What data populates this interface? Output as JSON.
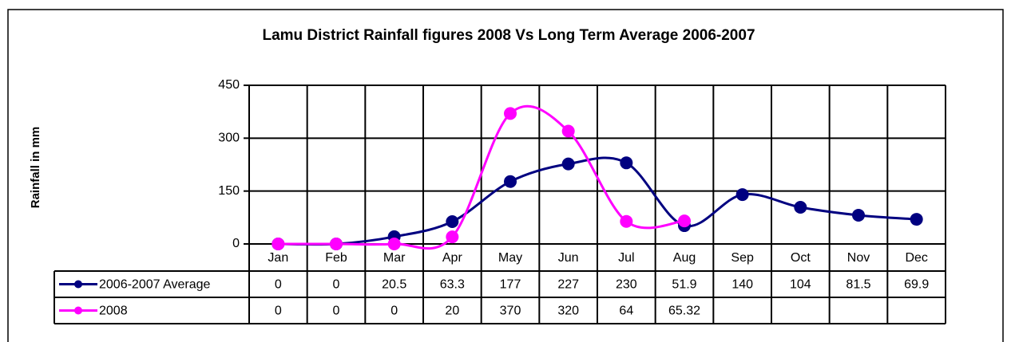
{
  "chart_data": {
    "type": "line",
    "title": "Lamu District Rainfall figures 2008 Vs Long Term Average 2006-2007",
    "y_label": "Rainfall in mm",
    "categories": [
      "Jan",
      "Feb",
      "Mar",
      "Apr",
      "May",
      "Jun",
      "Jul",
      "Aug",
      "Sep",
      "Oct",
      "Nov",
      "Dec"
    ],
    "series": [
      {
        "name": "2006-2007 Average",
        "color": "#000080",
        "values": [
          0,
          0,
          20.5,
          63.3,
          177,
          227,
          230,
          51.9,
          140,
          104,
          81.5,
          69.9
        ]
      },
      {
        "name": "2008",
        "color": "#ff00ff",
        "values": [
          0,
          0,
          0,
          20,
          370,
          320,
          64,
          65.32,
          null,
          null,
          null,
          null
        ]
      }
    ],
    "ylim": [
      0,
      450
    ],
    "yticks": [
      0,
      150,
      300,
      450
    ],
    "grid": true,
    "smooth": true,
    "data_table": true
  }
}
